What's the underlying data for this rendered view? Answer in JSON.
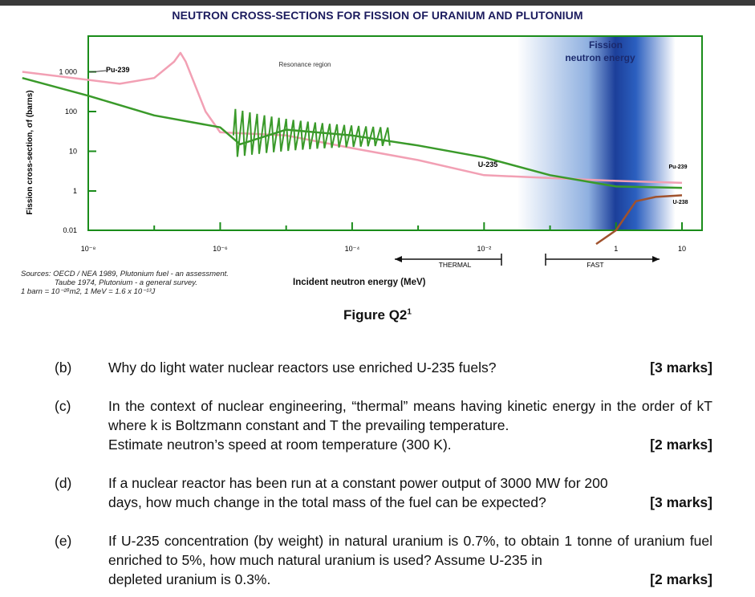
{
  "figure": {
    "title": "NEUTRON CROSS-SECTIONS FOR FISSION OF URANIUM AND PLUTONIUM",
    "caption": "Figure Q2",
    "caption_sup": "1",
    "sources_lines": [
      "Sources: OECD / NEA 1989, Plutonium fuel - an assessment.",
      "Taube 1974, Plutonium - a general survey.",
      "1 barn = 10⁻²⁸m2, 1 MeV = 1.6 x 10⁻¹³J"
    ],
    "xlabel": "Incident neutron energy (MeV)"
  },
  "chart_data": {
    "type": "line",
    "title": "NEUTRON CROSS-SECTIONS FOR FISSION OF URANIUM AND PLUTONIUM",
    "xlabel": "Incident neutron energy (MeV)",
    "ylabel": "Fission cross-section, σf (barns)",
    "x_scale": "log",
    "y_scale": "log",
    "x_tick_labels": [
      "10⁻⁸",
      "10⁻⁶",
      "10⁻⁴",
      "10⁻²",
      "1",
      "10"
    ],
    "y_tick_labels": [
      "1 000",
      "100",
      "10",
      "1",
      "0.01"
    ],
    "annotations": {
      "resonance": "Resonance region",
      "fission_band": [
        "Fission",
        "neutron energy"
      ],
      "thermal": "THERMAL",
      "fast": "FAST",
      "pu239_left": "Pu-239",
      "u235_mid": "U-235",
      "pu239_right": "Pu-239",
      "u238_right": "U-238"
    },
    "series": [
      {
        "name": "Pu-239",
        "color": "#f2a0b4",
        "x": [
          "1e-9",
          "3e-8",
          "1e-7",
          "2e-7",
          "2.5e-7",
          "3e-7",
          "6e-7",
          "1e-6",
          "1e-5",
          "1e-4",
          "1e-3",
          "1e-2",
          "1",
          "10"
        ],
        "y": [
          1000,
          500,
          700,
          1800,
          3000,
          1800,
          100,
          30,
          25,
          12,
          6,
          2.5,
          1.8,
          1.6
        ]
      },
      {
        "name": "U-235",
        "color": "#3a9a2a",
        "x": [
          "1e-9",
          "1e-8",
          "1e-7",
          "1e-6",
          "2e-6",
          "1e-5",
          "1e-4",
          "1e-3",
          "1e-2",
          "0.1",
          "1",
          "10"
        ],
        "y": [
          700,
          250,
          80,
          40,
          15,
          35,
          25,
          14,
          7,
          2.5,
          1.3,
          1.2
        ]
      },
      {
        "name": "U-238",
        "color": "#a0522d",
        "x": [
          "0.5",
          "1",
          "2",
          "4",
          "10"
        ],
        "y": [
          0.002,
          0.01,
          0.3,
          0.5,
          0.6
        ]
      }
    ]
  },
  "questions": [
    {
      "label": "(b)",
      "lines": [
        "Why do light water nuclear reactors use enriched U-235 fuels?"
      ],
      "marks": "[3 marks]"
    },
    {
      "label": "(c)",
      "lines": [
        "In the context of nuclear engineering, “thermal” means having kinetic energy in the order of kT where k is Boltzmann constant and T the prevailing temperature.",
        "Estimate neutron’s speed at room temperature (300 K)."
      ],
      "marks": "[2 marks]"
    },
    {
      "label": "(d)",
      "lines": [
        "If a nuclear reactor has been run at a constant power output of 3000 MW for 200",
        "days, how much change in the total mass of the fuel can be expected?"
      ],
      "marks": "[3 marks]"
    },
    {
      "label": "(e)",
      "lines": [
        "If U-235 concentration (by weight) in natural uranium is 0.7%, to obtain 1 tonne of uranium fuel enriched to 5%, how much natural uranium is used? Assume U-235 in",
        "depleted uranium is 0.3%."
      ],
      "marks": "[2 marks]"
    }
  ]
}
